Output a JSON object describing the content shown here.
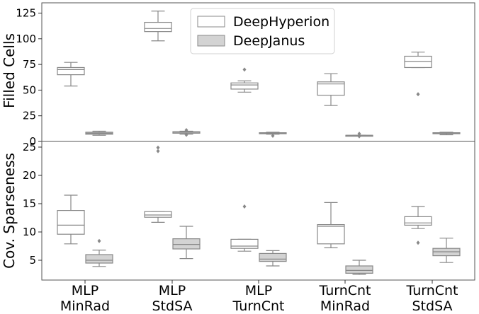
{
  "chart_data": [
    {
      "type": "box",
      "ylabel": "Filled Cells",
      "ylim": [
        0,
        135
      ],
      "yticks": [
        0,
        25,
        50,
        75,
        100,
        125
      ],
      "categories": [
        "MLP MinRad",
        "MLP StdSA",
        "MLP TurnCnt",
        "TurnCnt MinRad",
        "TurnCnt StdSA"
      ],
      "legend": {
        "position": "top-center",
        "entries": [
          "DeepHyperion",
          "DeepJanus"
        ]
      },
      "series": [
        {
          "name": "DeepHyperion",
          "color": "#ffffff",
          "boxes": [
            {
              "min": 54,
              "q1": 65,
              "median": 70,
              "q3": 72,
              "max": 77,
              "outliers": []
            },
            {
              "min": 98,
              "q1": 107,
              "median": 110,
              "q3": 116,
              "max": 127,
              "outliers": []
            },
            {
              "min": 48,
              "q1": 51,
              "median": 55,
              "q3": 57,
              "max": 59,
              "outliers": [
                70
              ]
            },
            {
              "min": 35,
              "q1": 45,
              "median": 56,
              "q3": 58,
              "max": 66,
              "outliers": []
            },
            {
              "min": 72,
              "q1": 72,
              "median": 78,
              "q3": 83,
              "max": 87,
              "outliers": [
                46
              ]
            }
          ]
        },
        {
          "name": "DeepJanus",
          "color": "#d3d3d3",
          "boxes": [
            {
              "min": 6,
              "q1": 7,
              "median": 8,
              "q3": 9,
              "max": 10,
              "outliers": []
            },
            {
              "min": 7,
              "q1": 8,
              "median": 9,
              "q3": 9.5,
              "max": 10,
              "outliers": [
                11,
                6.5
              ]
            },
            {
              "min": 7,
              "q1": 7.5,
              "median": 8,
              "q3": 8.5,
              "max": 9,
              "outliers": [
                5.5
              ]
            },
            {
              "min": 6,
              "q1": 6,
              "median": 6,
              "q3": 6,
              "max": 6,
              "outliers": [
                7.5,
                5
              ]
            },
            {
              "min": 6.5,
              "q1": 7.5,
              "median": 8,
              "q3": 8.5,
              "max": 9,
              "outliers": []
            }
          ]
        }
      ]
    },
    {
      "type": "box",
      "ylabel": "Cov. Sparseness",
      "ylim": [
        1.5,
        26
      ],
      "yticks": [
        5,
        10,
        15,
        20,
        25
      ],
      "categories": [
        "MLP MinRad",
        "MLP StdSA",
        "MLP TurnCnt",
        "TurnCnt MinRad",
        "TurnCnt StdSA"
      ],
      "series": [
        {
          "name": "DeepHyperion",
          "color": "#ffffff",
          "boxes": [
            {
              "min": 7.9,
              "q1": 9.6,
              "median": 11.2,
              "q3": 13.8,
              "max": 16.5,
              "outliers": []
            },
            {
              "min": 11.7,
              "q1": 12.6,
              "median": 13.0,
              "q3": 13.6,
              "max": 13.6,
              "outliers": [
                24.3,
                24.9
              ]
            },
            {
              "min": 6.6,
              "q1": 7.1,
              "median": 7.5,
              "q3": 8.7,
              "max": 8.7,
              "outliers": [
                14.5
              ]
            },
            {
              "min": 7.2,
              "q1": 7.9,
              "median": 11.0,
              "q3": 11.3,
              "max": 15.2,
              "outliers": []
            },
            {
              "min": 10.6,
              "q1": 11.2,
              "median": 11.6,
              "q3": 12.7,
              "max": 14.5,
              "outliers": [
                8.1
              ]
            }
          ]
        },
        {
          "name": "DeepJanus",
          "color": "#d3d3d3",
          "boxes": [
            {
              "min": 3.9,
              "q1": 4.5,
              "median": 5.0,
              "q3": 6.0,
              "max": 6.8,
              "outliers": [
                8.4
              ]
            },
            {
              "min": 5.3,
              "q1": 7.0,
              "median": 7.8,
              "q3": 8.8,
              "max": 11.0,
              "outliers": []
            },
            {
              "min": 4.0,
              "q1": 4.8,
              "median": 5.2,
              "q3": 6.2,
              "max": 6.7,
              "outliers": []
            },
            {
              "min": 2.5,
              "q1": 2.7,
              "median": 3.2,
              "q3": 4.0,
              "max": 5.0,
              "outliers": []
            },
            {
              "min": 4.6,
              "q1": 5.8,
              "median": 6.5,
              "q3": 7.1,
              "max": 8.9,
              "outliers": []
            }
          ]
        }
      ]
    }
  ],
  "xticklabels": [
    [
      "MLP",
      "MinRad"
    ],
    [
      "MLP",
      "StdSA"
    ],
    [
      "MLP",
      "TurnCnt"
    ],
    [
      "TurnCnt",
      "MinRad"
    ],
    [
      "TurnCnt",
      "StdSA"
    ]
  ]
}
